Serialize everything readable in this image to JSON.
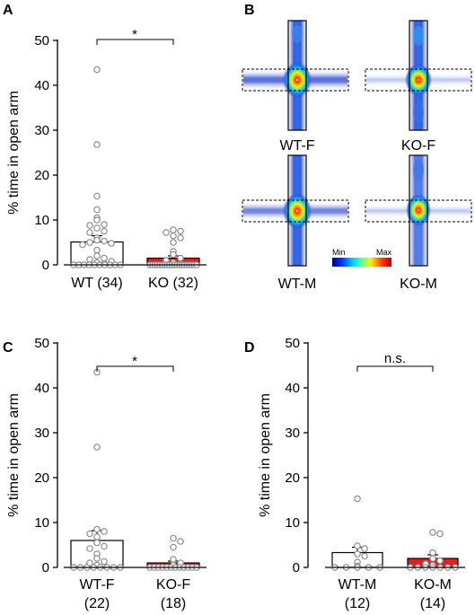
{
  "panels": [
    {
      "letter": "A",
      "ylabel": "% time in open arm",
      "yticks": [
        "0",
        "10",
        "20",
        "30",
        "40",
        "50"
      ],
      "categories": [
        "WT (34)",
        "KO (32)"
      ],
      "significance": "*"
    },
    {
      "letter": "B"
    },
    {
      "letter": "C",
      "ylabel": "% time in open arm",
      "yticks": [
        "0",
        "10",
        "20",
        "30",
        "40",
        "50"
      ],
      "categories_line1": [
        "WT-F",
        "KO-F"
      ],
      "categories_line2": [
        "(22)",
        "(18)"
      ],
      "significance": "*"
    },
    {
      "letter": "D",
      "ylabel": "% time in open arm",
      "yticks": [
        "0",
        "10",
        "20",
        "30",
        "40",
        "50"
      ],
      "categories_line1": [
        "WT-M",
        "KO-M"
      ],
      "categories_line2": [
        "(12)",
        "(14)"
      ],
      "significance": "n.s."
    }
  ],
  "heatmaps": {
    "labels": [
      "WT-F",
      "KO-F",
      "WT-M",
      "KO-M"
    ],
    "colorbar": {
      "min_label": "Min",
      "max_label": "Max"
    }
  },
  "colors": {
    "wt_bar": "#ffffff",
    "ko_bar": "#e02020",
    "point": "#888888"
  },
  "chart_data": [
    {
      "panel": "A",
      "type": "bar",
      "categories": [
        "WT (34)",
        "KO (32)"
      ],
      "values": [
        5.1,
        1.5
      ],
      "sem": [
        1.4,
        0.5
      ],
      "ylim": [
        0,
        50
      ],
      "points": [
        [
          43.5,
          26.8,
          15.3,
          12.3,
          10.5,
          10.0,
          9.0,
          8.8,
          8.2,
          7.5,
          7.2,
          6.0,
          5.5,
          5.3,
          5.0,
          4.8,
          4.5,
          3.3,
          2.0,
          1.5,
          1.2,
          0.8,
          0.5,
          0.3,
          0,
          0,
          0,
          0,
          0,
          0,
          0,
          0,
          0,
          0
        ],
        [
          7.8,
          7.5,
          7.2,
          6.5,
          6.0,
          5.0,
          3.0,
          2.3,
          1.5,
          1.0,
          0.5,
          0.2,
          0,
          0,
          0,
          0,
          0,
          0,
          0,
          0,
          0,
          0,
          0,
          0,
          0,
          0,
          0,
          0,
          0,
          0,
          0,
          0
        ]
      ]
    },
    {
      "panel": "C",
      "type": "bar",
      "categories": [
        "WT-F (22)",
        "KO-F (18)"
      ],
      "values": [
        6.0,
        1.0
      ],
      "sem": [
        2.2,
        0.4
      ],
      "ylim": [
        0,
        50
      ],
      "points": [
        [
          43.5,
          26.8,
          8.5,
          8.0,
          7.5,
          6.8,
          5.5,
          4.7,
          4.2,
          3.0,
          2.0,
          1.3,
          1.0,
          0.5,
          0,
          0,
          0,
          0,
          0,
          0,
          0,
          0
        ],
        [
          6.5,
          5.8,
          4.5,
          1.8,
          1.0,
          0.5,
          0,
          0,
          0,
          0,
          0,
          0,
          0,
          0,
          0,
          0,
          0,
          0
        ]
      ]
    },
    {
      "panel": "D",
      "type": "bar",
      "categories": [
        "WT-M (12)",
        "KO-M (14)"
      ],
      "values": [
        3.3,
        2.0
      ],
      "sem": [
        1.2,
        0.8
      ],
      "ylim": [
        0,
        50
      ],
      "points": [
        [
          15.3,
          4.8,
          4.2,
          3.0,
          2.5,
          1.2,
          0.3,
          0,
          0,
          0,
          0,
          0
        ],
        [
          7.8,
          7.5,
          3.3,
          2.0,
          1.5,
          0.8,
          0.5,
          0,
          0,
          0,
          0,
          0,
          0,
          0
        ]
      ]
    }
  ]
}
